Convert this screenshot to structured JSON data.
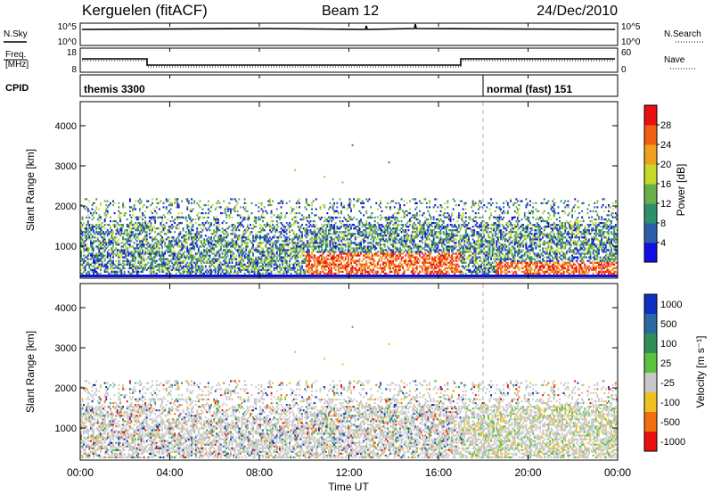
{
  "header": {
    "station": "Kerguelen (fitACF)",
    "beam": "Beam 12",
    "date": "24/Dec/2010"
  },
  "panels": {
    "nsky": {
      "label": "N.Sky",
      "left_ticks": [
        "10^5",
        "10^0"
      ],
      "right_ticks": [
        "10^5",
        "10^0"
      ],
      "right_label": "N.Search"
    },
    "freq": {
      "label_line1": "Freq.",
      "label_line2": "[MHz]",
      "left_ticks": [
        "18",
        "8"
      ],
      "right_ticks": [
        "60",
        "0"
      ],
      "right_label": "Nave"
    },
    "cpid": {
      "label": "CPID",
      "segments": [
        {
          "text": "themis 3300"
        },
        {
          "text": "normal (fast) 151"
        }
      ]
    }
  },
  "chart_data": [
    {
      "type": "heatmap",
      "name": "power",
      "ylabel": "Slant Range [km]",
      "yticks": [
        "1000",
        "2000",
        "3000",
        "4000"
      ],
      "ylim": [
        200,
        4600
      ],
      "xlim": [
        0,
        24
      ],
      "colorbar": {
        "label": "Power [dB]",
        "ticks": [
          "4",
          "8",
          "12",
          "16",
          "20",
          "24",
          "28"
        ],
        "colors": [
          "#1010e0",
          "#2a5ea8",
          "#2f8f6a",
          "#6ab04a",
          "#c8d82a",
          "#f0a020",
          "#f06010",
          "#e81010"
        ]
      }
    },
    {
      "type": "heatmap",
      "name": "velocity",
      "ylabel": "Slant Range [km]",
      "yticks": [
        "1000",
        "2000",
        "3000",
        "4000"
      ],
      "ylim": [
        200,
        4600
      ],
      "xlim": [
        0,
        24
      ],
      "colorbar": {
        "label": "Velocity [m s⁻¹]",
        "ticks": [
          "1000",
          "500",
          "100",
          "25",
          "-25",
          "-100",
          "-500",
          "-1000"
        ],
        "colors": [
          "#1030c0",
          "#2a6aa0",
          "#2f8f5a",
          "#5cc040",
          "#c8c8c8",
          "#f0c020",
          "#f07010",
          "#e81010"
        ]
      }
    }
  ],
  "xaxis": {
    "ticks": [
      "00:00",
      "04:00",
      "08:00",
      "12:00",
      "16:00",
      "20:00",
      "00:00"
    ],
    "label": "Time UT"
  },
  "colors": {
    "ground_scatter": "#c8c8c8"
  }
}
